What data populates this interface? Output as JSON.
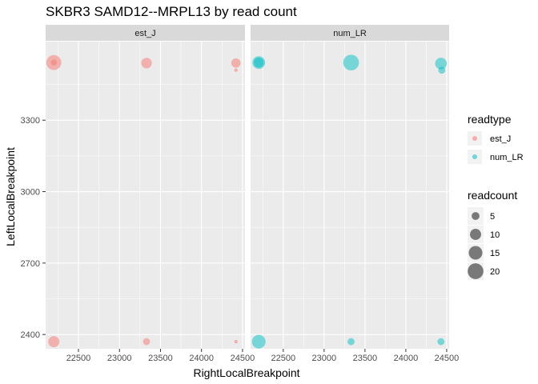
{
  "chart_data": {
    "type": "scatter",
    "title": "SKBR3 SAMD12--MRPL13 by read count",
    "xlabel": "RightLocalBreakpoint",
    "ylabel": "LeftLocalBreakpoint",
    "facets": [
      "est_J",
      "num_LR"
    ],
    "xlim": [
      22100,
      24530
    ],
    "ylim": [
      2340,
      3630
    ],
    "x_ticks": [
      22500,
      23000,
      23500,
      24000,
      24500
    ],
    "y_ticks": [
      2400,
      2700,
      3000,
      3300
    ],
    "grid": true,
    "series": [
      {
        "name": "est_J",
        "color": "#F8766D",
        "points": [
          {
            "x": 22200,
            "y": 3542,
            "readcount": 18
          },
          {
            "x": 22200,
            "y": 3542,
            "readcount": 3
          },
          {
            "x": 23330,
            "y": 3540,
            "readcount": 9
          },
          {
            "x": 24420,
            "y": 3540,
            "readcount": 7
          },
          {
            "x": 24420,
            "y": 3510,
            "readcount": 1
          },
          {
            "x": 22200,
            "y": 2370,
            "readcount": 10
          },
          {
            "x": 23330,
            "y": 2370,
            "readcount": 4
          },
          {
            "x": 24420,
            "y": 2370,
            "readcount": 1
          }
        ]
      },
      {
        "name": "num_LR",
        "color": "#00BFC4",
        "points": [
          {
            "x": 22200,
            "y": 3542,
            "readcount": 13
          },
          {
            "x": 22200,
            "y": 3542,
            "readcount": 8
          },
          {
            "x": 23330,
            "y": 3542,
            "readcount": 20
          },
          {
            "x": 24430,
            "y": 3538,
            "readcount": 11
          },
          {
            "x": 24440,
            "y": 3510,
            "readcount": 4
          },
          {
            "x": 22200,
            "y": 2370,
            "readcount": 15
          },
          {
            "x": 23330,
            "y": 2370,
            "readcount": 4
          },
          {
            "x": 24430,
            "y": 2370,
            "readcount": 4
          }
        ]
      }
    ],
    "legend": {
      "placement": "right",
      "color_title": "readtype",
      "color_entries": [
        "est_J",
        "num_LR"
      ],
      "size_title": "readcount",
      "size_entries": [
        5,
        10,
        15,
        20
      ]
    }
  }
}
